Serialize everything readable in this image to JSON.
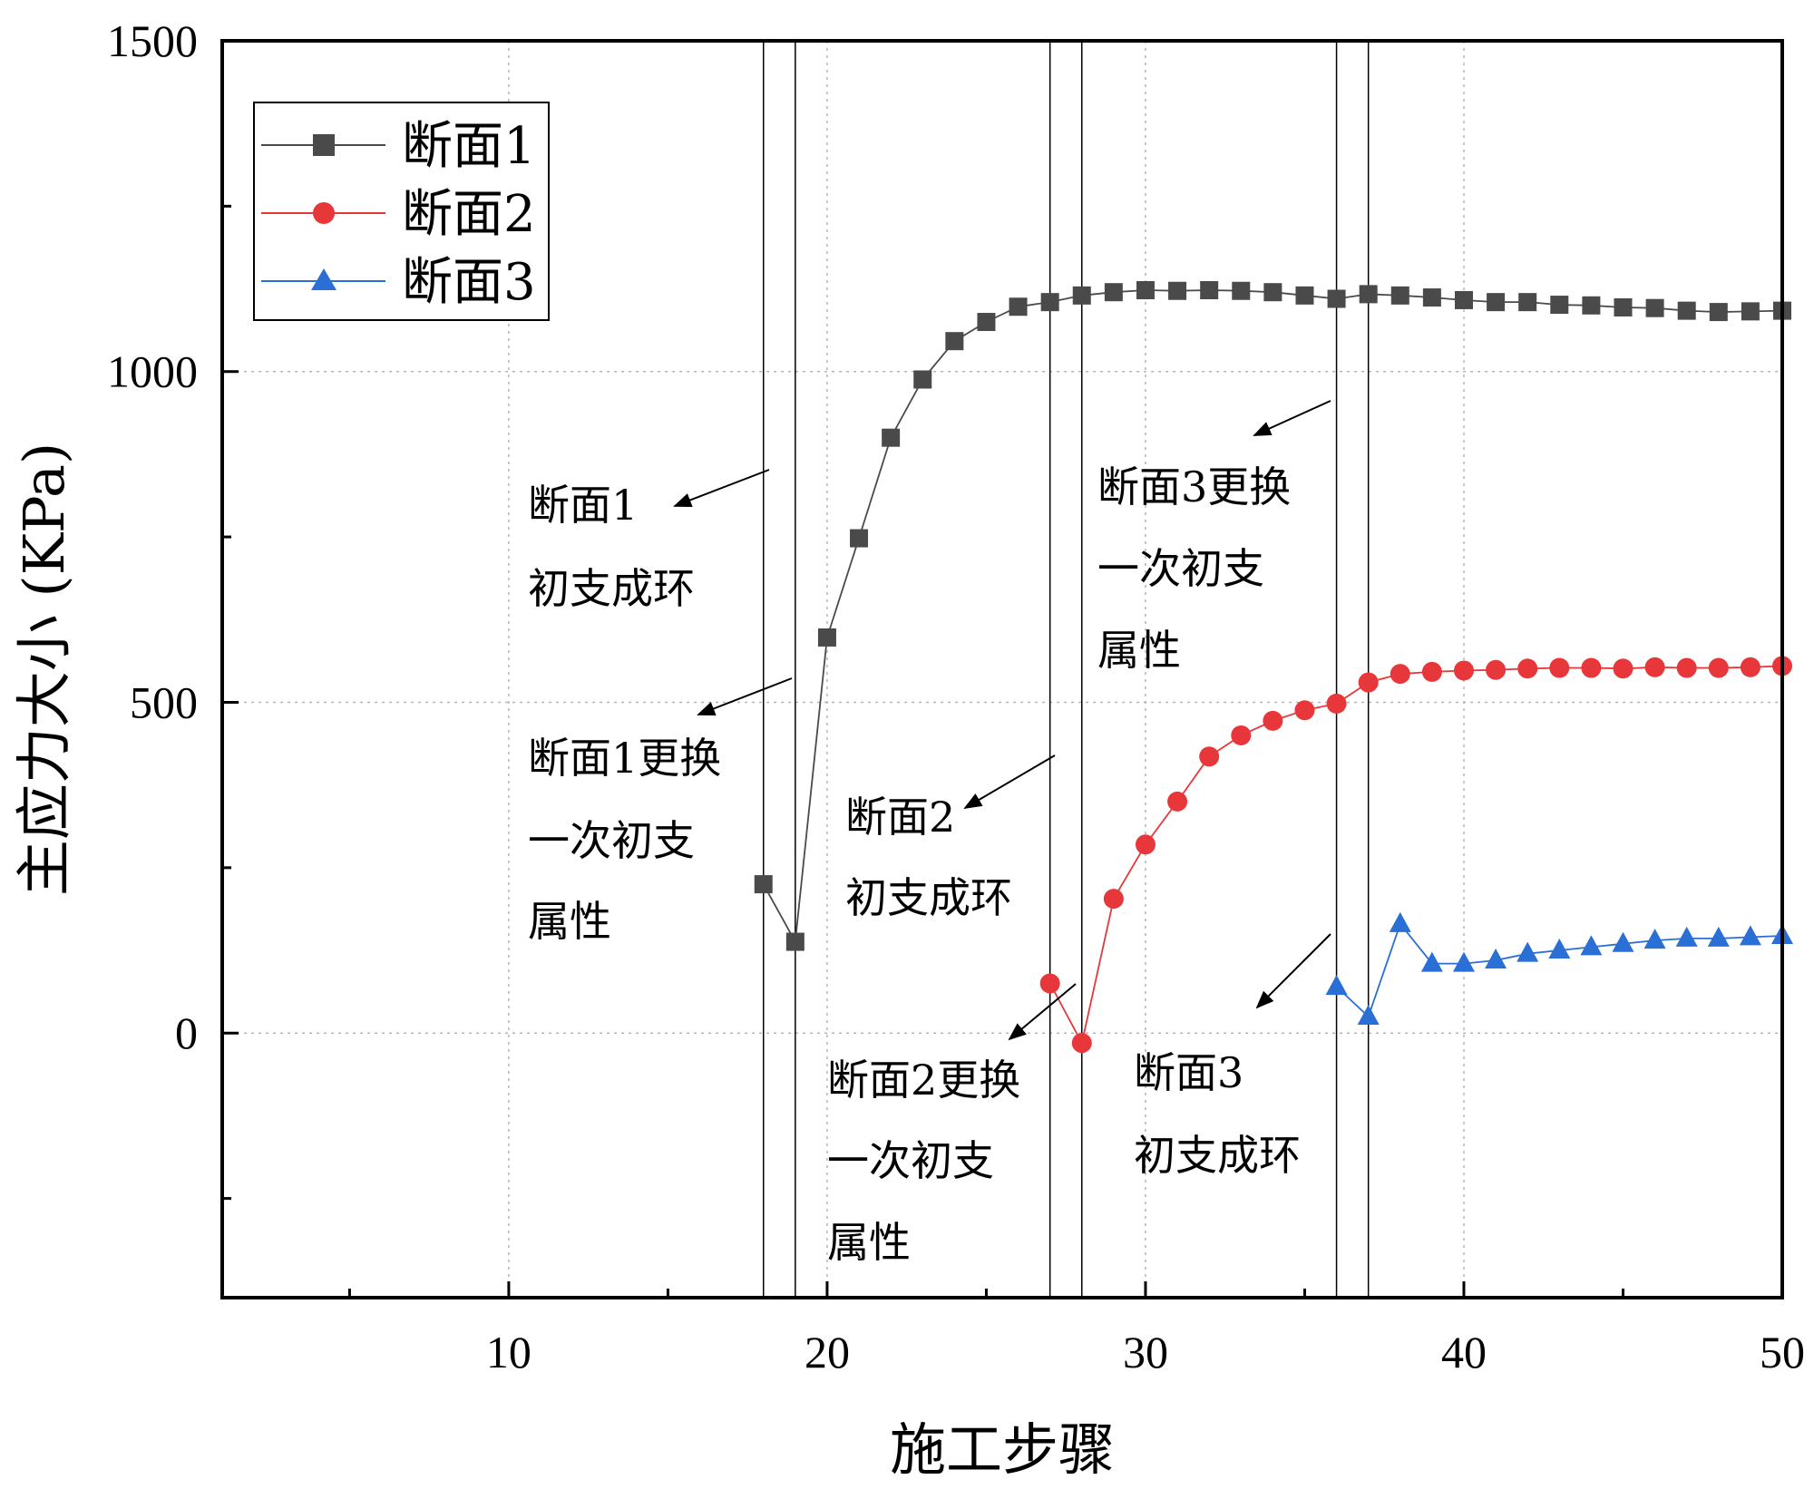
{
  "chart_data": {
    "type": "line",
    "title": "",
    "xlabel": "施工步骤",
    "ylabel": "主应力大小 (KPa)",
    "xlim": [
      1,
      50
    ],
    "ylim": [
      -400,
      1500
    ],
    "xticks": [
      10,
      20,
      30,
      40,
      50
    ],
    "yticks": [
      0,
      500,
      1000,
      1500
    ],
    "x_minor_ticks": [
      5,
      15,
      25,
      35,
      45
    ],
    "y_minor_ticks": [
      -250,
      250,
      750,
      1250
    ],
    "grid": true,
    "legend_position": "top-left",
    "stage_lines": [
      18,
      19,
      27,
      28,
      36,
      37
    ],
    "series": [
      {
        "name": "断面1",
        "color": "#4a4a4a",
        "marker": "square",
        "x": [
          18,
          19,
          20,
          21,
          22,
          23,
          24,
          25,
          26,
          27,
          28,
          29,
          30,
          31,
          32,
          33,
          34,
          35,
          36,
          37,
          38,
          39,
          40,
          41,
          42,
          43,
          44,
          45,
          46,
          47,
          48,
          49,
          50
        ],
        "y": [
          225,
          138,
          598,
          748,
          900,
          988,
          1046,
          1075,
          1098,
          1105,
          1115,
          1120,
          1123,
          1122,
          1123,
          1122,
          1120,
          1115,
          1110,
          1117,
          1115,
          1112,
          1108,
          1105,
          1105,
          1101,
          1100,
          1097,
          1096,
          1092,
          1090,
          1091,
          1092
        ]
      },
      {
        "name": "断面2",
        "color": "#e8373a",
        "marker": "circle",
        "x": [
          27,
          28,
          29,
          30,
          31,
          32,
          33,
          34,
          35,
          36,
          37,
          38,
          39,
          40,
          41,
          42,
          43,
          44,
          45,
          46,
          47,
          48,
          49,
          50
        ],
        "y": [
          75,
          -15,
          203,
          285,
          350,
          418,
          450,
          472,
          488,
          498,
          530,
          543,
          546,
          548,
          549,
          551,
          552,
          552,
          551,
          553,
          552,
          552,
          553,
          555
        ]
      },
      {
        "name": "断面3",
        "color": "#2a6fd6",
        "marker": "triangle",
        "x": [
          36,
          37,
          38,
          39,
          40,
          41,
          42,
          43,
          44,
          45,
          46,
          47,
          48,
          49,
          50
        ],
        "y": [
          70,
          25,
          165,
          105,
          105,
          110,
          120,
          125,
          130,
          135,
          140,
          143,
          143,
          145,
          147
        ]
      }
    ],
    "annotations": [
      {
        "id": "s1-ring",
        "lines": [
          "断面1",
          "初支成环"
        ]
      },
      {
        "id": "s1-replace",
        "lines": [
          "断面1更换",
          "一次初支",
          "属性"
        ]
      },
      {
        "id": "s2-ring",
        "lines": [
          "断面2",
          "初支成环"
        ]
      },
      {
        "id": "s2-replace",
        "lines": [
          "断面2更换",
          "一次初支",
          "属性"
        ]
      },
      {
        "id": "s3-replace",
        "lines": [
          "断面3更换",
          "一次初支",
          "属性"
        ]
      },
      {
        "id": "s3-ring",
        "lines": [
          "断面3",
          "初支成环"
        ]
      }
    ]
  }
}
